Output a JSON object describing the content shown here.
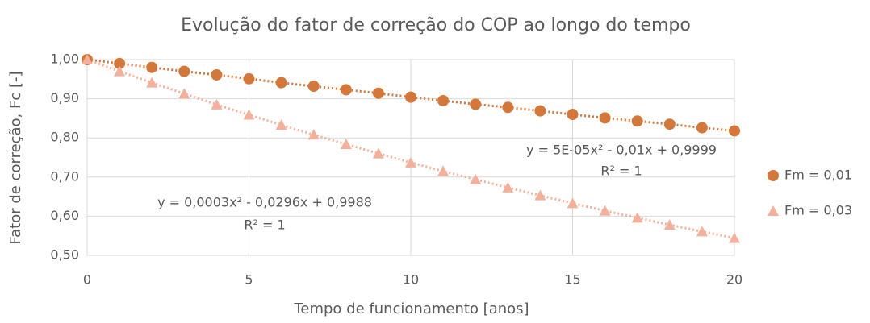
{
  "chart_data": {
    "type": "scatter",
    "title": "Evolução do fator de correção do COP ao longo do tempo",
    "xlabel": "Tempo de funcionamento [anos]",
    "ylabel": "Fator de correção, Fc [-]",
    "x": [
      0,
      1,
      2,
      3,
      4,
      5,
      6,
      7,
      8,
      9,
      10,
      11,
      12,
      13,
      14,
      15,
      16,
      17,
      18,
      19,
      20
    ],
    "series": [
      {
        "name": "Fm = 0,01",
        "color": "#d4773a",
        "marker": "circle",
        "values": [
          1.0,
          0.99,
          0.98,
          0.97,
          0.961,
          0.951,
          0.941,
          0.932,
          0.923,
          0.914,
          0.904,
          0.895,
          0.886,
          0.878,
          0.869,
          0.86,
          0.851,
          0.843,
          0.835,
          0.826,
          0.818
        ]
      },
      {
        "name": "Fm = 0,03",
        "color": "#f4b09a",
        "marker": "triangle",
        "values": [
          1.0,
          0.97,
          0.941,
          0.913,
          0.885,
          0.859,
          0.833,
          0.808,
          0.784,
          0.76,
          0.737,
          0.715,
          0.694,
          0.673,
          0.653,
          0.633,
          0.614,
          0.596,
          0.578,
          0.561,
          0.544
        ]
      }
    ],
    "annotations": [
      "y = 5E-05x² - 0,01x + 0,9999",
      "R² = 1",
      "y = 0,0003x² - 0,0296x + 0,9988",
      "R² = 1"
    ],
    "xlim": [
      0,
      20
    ],
    "xticks": [
      0,
      5,
      10,
      15,
      20
    ],
    "ylim": [
      0.5,
      1.0
    ],
    "yticks": [
      {
        "value": 0.5,
        "label": "0,50"
      },
      {
        "value": 0.6,
        "label": "0,60"
      },
      {
        "value": 0.7,
        "label": "0,70"
      },
      {
        "value": 0.8,
        "label": "0,80"
      },
      {
        "value": 0.9,
        "label": "0,90"
      },
      {
        "value": 1.0,
        "label": "1,00"
      }
    ],
    "grid": true,
    "legend": "right"
  }
}
